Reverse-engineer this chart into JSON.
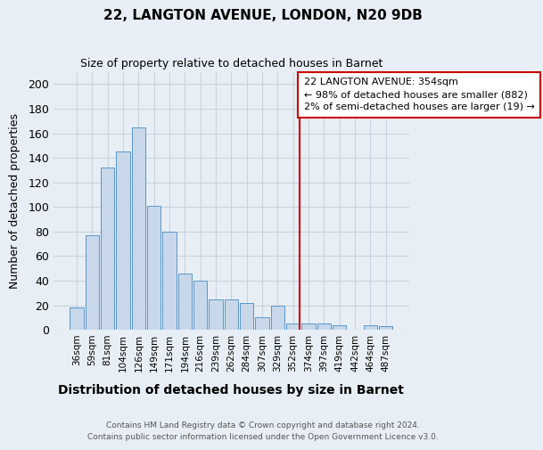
{
  "title": "22, LANGTON AVENUE, LONDON, N20 9DB",
  "subtitle": "Size of property relative to detached houses in Barnet",
  "xlabel": "Distribution of detached houses by size in Barnet",
  "ylabel": "Number of detached properties",
  "bar_labels": [
    "36sqm",
    "59sqm",
    "81sqm",
    "104sqm",
    "126sqm",
    "149sqm",
    "171sqm",
    "194sqm",
    "216sqm",
    "239sqm",
    "262sqm",
    "284sqm",
    "307sqm",
    "329sqm",
    "352sqm",
    "374sqm",
    "397sqm",
    "419sqm",
    "442sqm",
    "464sqm",
    "487sqm"
  ],
  "bar_heights": [
    18,
    77,
    132,
    145,
    165,
    101,
    80,
    46,
    40,
    25,
    25,
    22,
    10,
    20,
    5,
    5,
    5,
    4,
    0,
    4,
    3
  ],
  "bar_color": "#c8d8ea",
  "bar_edge_color": "#5a96c8",
  "reference_line_x_label": "352sqm",
  "reference_line_color": "#cc0000",
  "annotation_title": "22 LANGTON AVENUE: 354sqm",
  "annotation_line1": "← 98% of detached houses are smaller (882)",
  "annotation_line2": "2% of semi-detached houses are larger (19) →",
  "ylim": [
    0,
    210
  ],
  "yticks": [
    0,
    20,
    40,
    60,
    80,
    100,
    120,
    140,
    160,
    180,
    200
  ],
  "footer_line1": "Contains HM Land Registry data © Crown copyright and database right 2024.",
  "footer_line2": "Contains public sector information licensed under the Open Government Licence v3.0.",
  "bg_color": "#e8eef5",
  "plot_bg_color": "#e8eef5",
  "grid_color": "#c8d4e0"
}
